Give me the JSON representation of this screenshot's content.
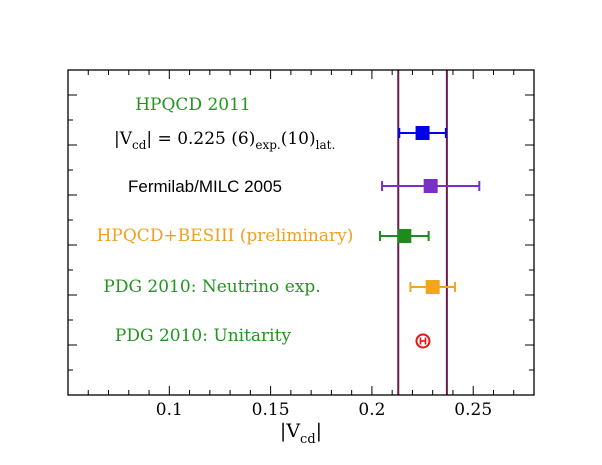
{
  "chart_data": {
    "type": "scatter",
    "style": "forest-plot",
    "xlabel_main": "|V",
    "xlabel_sub": "cd",
    "xlabel_close": "|",
    "xlim": [
      0.05,
      0.28
    ],
    "xticks": [
      0.1,
      0.15,
      0.2,
      0.25
    ],
    "xtick_labels": [
      "0.1",
      "0.15",
      "0.2",
      "0.25"
    ],
    "band": {
      "lower": 0.213,
      "upper": 0.237,
      "color": "#6a1b4d"
    },
    "series": [
      {
        "name": "HPQCD 2011",
        "value": 0.225,
        "xerr_low": 0.0115,
        "xerr_high": 0.0115,
        "color": "#0000ee",
        "label_color": "#22941f",
        "marker": "square"
      },
      {
        "name": "Fermilab/MILC 2005",
        "value": 0.229,
        "xerr_low": 0.024,
        "xerr_high": 0.024,
        "color": "#7a30c8",
        "label_color": "#000000",
        "marker": "square"
      },
      {
        "name": "HPQCD+BESIII (preliminary)",
        "value": 0.216,
        "xerr_low": 0.012,
        "xerr_high": 0.012,
        "color": "#1f8b1f",
        "label_color": "#f0a020",
        "marker": "square"
      },
      {
        "name": "PDG 2010: Neutrino exp.",
        "value": 0.23,
        "xerr_low": 0.011,
        "xerr_high": 0.011,
        "color": "#f4a425",
        "label_color": "#22941f",
        "marker": "square"
      },
      {
        "name": "PDG 2010: Unitarity",
        "value": 0.2252,
        "xerr_low": 0.0009,
        "xerr_high": 0.0009,
        "color": "#ee1111",
        "label_color": "#22941f",
        "marker": "circle"
      }
    ],
    "annotation": {
      "prefix": "|V",
      "sub1": "cd",
      "mid1": "| = 0.225 (6)",
      "sub2": "exp.",
      "mid2": "(10)",
      "sub3": "lat."
    }
  }
}
